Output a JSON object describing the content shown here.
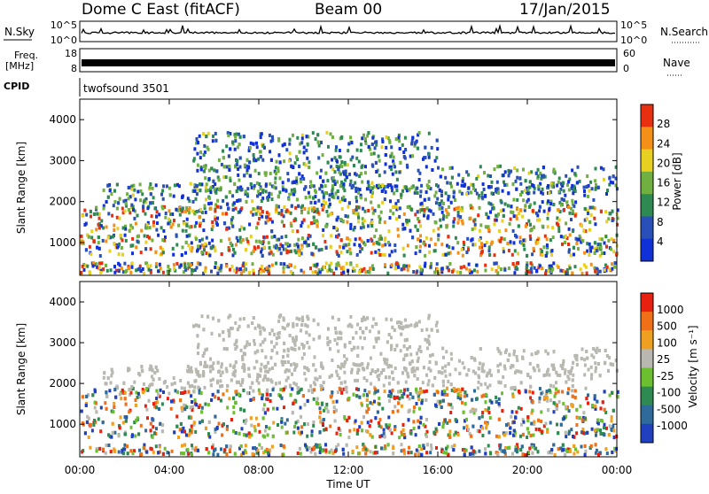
{
  "header": {
    "station": "Dome C East (fitACF)",
    "beam": "Beam 00",
    "date": "17/Jan/2015"
  },
  "top_panels": {
    "nsky": {
      "label": "N.Sky",
      "tick_top": "10^5",
      "tick_bottom": "10^0"
    },
    "nsearch": {
      "label": "N.Search",
      "tick_top": "10^5",
      "tick_bottom": "10^0"
    },
    "freq": {
      "label_line1": "Freq.",
      "label_line2": "[MHz]",
      "tick_top": "18",
      "tick_bottom": "8"
    },
    "nave": {
      "label": "Nave",
      "tick_top": "60",
      "tick_bottom": "0"
    },
    "cpid": {
      "label": "CPID",
      "program": "twofsound 3501"
    }
  },
  "chart_data": [
    {
      "type": "heatmap",
      "name": "power-panel",
      "ylabel": "Slant Range [km]",
      "yticks": [
        "1000",
        "2000",
        "3000",
        "4000"
      ],
      "ylim": [
        200,
        4500
      ],
      "xlim": [
        0,
        24
      ],
      "colorbar": {
        "title": "Power [dB]",
        "ticks": [
          "4",
          "8",
          "12",
          "16",
          "20",
          "24",
          "28"
        ],
        "range": [
          0,
          32
        ]
      },
      "colors": [
        "#1030d8",
        "#2850b8",
        "#2e8a50",
        "#70b040",
        "#e8d020",
        "#f49018",
        "#e83010"
      ]
    },
    {
      "type": "heatmap",
      "name": "velocity-panel",
      "ylabel": "Slant Range [km]",
      "yticks": [
        "1000",
        "2000",
        "3000",
        "4000"
      ],
      "ylim": [
        200,
        4500
      ],
      "xlim": [
        0,
        24
      ],
      "colorbar": {
        "title": "Velocity [m s⁻¹]",
        "ticks": [
          "1000",
          "500",
          "100",
          "25",
          "-25",
          "-100",
          "-500",
          "-1000"
        ]
      },
      "colors": [
        "#2040c0",
        "#2e6a9a",
        "#2e8a50",
        "#6cc030",
        "#b8b8b0",
        "#f0a020",
        "#f07018",
        "#e82010"
      ]
    }
  ],
  "xaxis": {
    "label": "Time UT",
    "ticks": [
      "00:00",
      "04:00",
      "08:00",
      "12:00",
      "16:00",
      "20:00",
      "00:00"
    ]
  }
}
